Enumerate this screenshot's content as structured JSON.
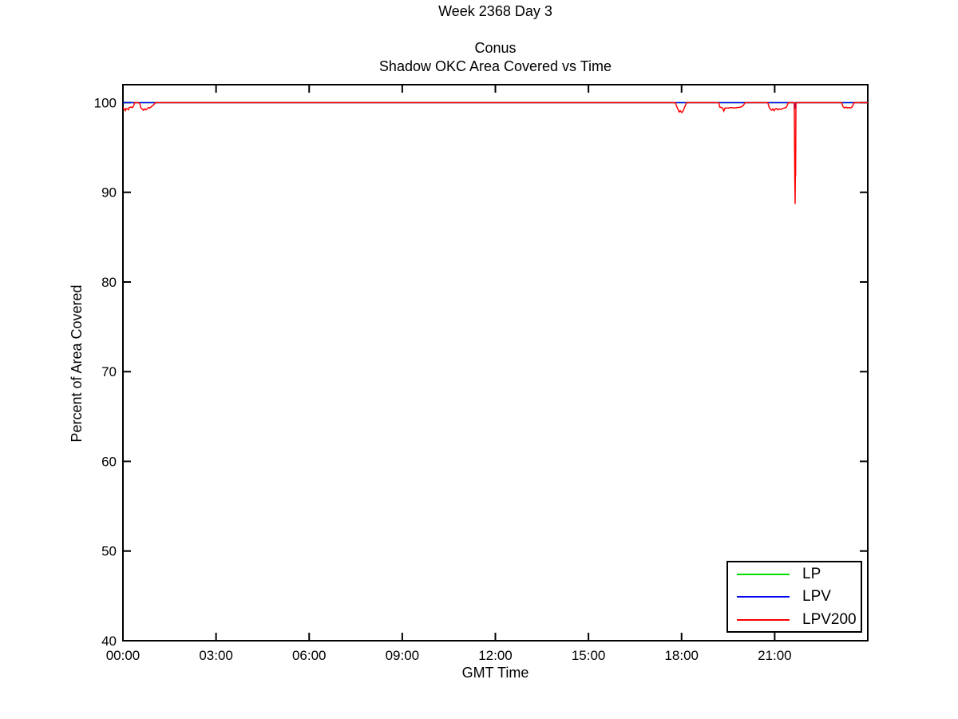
{
  "figure": {
    "title": "Week 2368 Day 3"
  },
  "chart_data": {
    "type": "line",
    "title_lines": [
      "Conus",
      "Shadow OKC Area Covered vs Time"
    ],
    "xlabel": "GMT Time",
    "ylabel": "Percent of Area Covered",
    "xlim": [
      0,
      24
    ],
    "ylim": [
      40,
      102
    ],
    "grid": false,
    "legend_position": "bottom-right",
    "xticks": [
      {
        "t": 0,
        "label": "00:00"
      },
      {
        "t": 3,
        "label": "03:00"
      },
      {
        "t": 6,
        "label": "06:00"
      },
      {
        "t": 9,
        "label": "09:00"
      },
      {
        "t": 12,
        "label": "12:00"
      },
      {
        "t": 15,
        "label": "15:00"
      },
      {
        "t": 18,
        "label": "18:00"
      },
      {
        "t": 21,
        "label": "21:00"
      },
      {
        "t": 24,
        "label": ""
      }
    ],
    "yticks": [
      40,
      50,
      60,
      70,
      80,
      90,
      100
    ],
    "series": [
      {
        "name": "LP",
        "color": "#00DD00",
        "points": [
          [
            0,
            100
          ],
          [
            24,
            100
          ]
        ]
      },
      {
        "name": "LPV",
        "color": "#0000EE",
        "points": [
          [
            0,
            100
          ],
          [
            21.62,
            100
          ],
          [
            21.65,
            99.3
          ],
          [
            21.68,
            100
          ],
          [
            24,
            100
          ]
        ]
      },
      {
        "name": "LPV200",
        "color": "#FF0000",
        "points": [
          [
            0,
            99.4
          ],
          [
            0.02,
            99.4
          ],
          [
            0.05,
            99.2
          ],
          [
            0.08,
            99.1
          ],
          [
            0.1,
            99.35
          ],
          [
            0.14,
            99.3
          ],
          [
            0.18,
            99.2
          ],
          [
            0.2,
            99.45
          ],
          [
            0.25,
            99.5
          ],
          [
            0.3,
            99.45
          ],
          [
            0.34,
            99.6
          ],
          [
            0.38,
            100
          ],
          [
            0.5,
            100
          ],
          [
            0.54,
            99.9
          ],
          [
            0.58,
            99.4
          ],
          [
            0.62,
            99.3
          ],
          [
            0.66,
            99.15
          ],
          [
            0.7,
            99.3
          ],
          [
            0.74,
            99.2
          ],
          [
            0.78,
            99.3
          ],
          [
            0.82,
            99.45
          ],
          [
            0.86,
            99.4
          ],
          [
            0.9,
            99.5
          ],
          [
            0.95,
            99.65
          ],
          [
            1.0,
            99.8
          ],
          [
            1.05,
            100
          ],
          [
            17.8,
            100
          ],
          [
            17.84,
            99.6
          ],
          [
            17.88,
            99.3
          ],
          [
            17.92,
            98.95
          ],
          [
            17.96,
            99.1
          ],
          [
            18.0,
            98.9
          ],
          [
            18.04,
            99.0
          ],
          [
            18.1,
            99.5
          ],
          [
            18.16,
            100
          ],
          [
            19.2,
            100
          ],
          [
            19.23,
            99.5
          ],
          [
            19.28,
            99.45
          ],
          [
            19.32,
            99.4
          ],
          [
            19.36,
            99.05
          ],
          [
            19.4,
            99.4
          ],
          [
            19.5,
            99.4
          ],
          [
            19.6,
            99.45
          ],
          [
            19.7,
            99.4
          ],
          [
            19.8,
            99.45
          ],
          [
            19.9,
            99.5
          ],
          [
            19.98,
            99.65
          ],
          [
            20.05,
            100
          ],
          [
            20.78,
            100
          ],
          [
            20.82,
            99.5
          ],
          [
            20.86,
            99.3
          ],
          [
            20.9,
            99.15
          ],
          [
            20.94,
            99.3
          ],
          [
            20.98,
            99.1
          ],
          [
            21.02,
            99.3
          ],
          [
            21.06,
            99.35
          ],
          [
            21.1,
            99.2
          ],
          [
            21.15,
            99.3
          ],
          [
            21.2,
            99.25
          ],
          [
            21.26,
            99.35
          ],
          [
            21.32,
            99.4
          ],
          [
            21.38,
            99.5
          ],
          [
            21.44,
            100
          ],
          [
            21.63,
            100
          ],
          [
            21.65,
            91.5
          ],
          [
            21.66,
            88.7
          ],
          [
            21.67,
            93.0
          ],
          [
            21.675,
            91.8
          ],
          [
            21.685,
            100
          ],
          [
            23.16,
            100
          ],
          [
            23.2,
            99.55
          ],
          [
            23.25,
            99.4
          ],
          [
            23.3,
            99.5
          ],
          [
            23.35,
            99.4
          ],
          [
            23.4,
            99.45
          ],
          [
            23.45,
            99.4
          ],
          [
            23.5,
            99.55
          ],
          [
            23.56,
            100
          ],
          [
            24,
            100
          ]
        ]
      }
    ]
  }
}
